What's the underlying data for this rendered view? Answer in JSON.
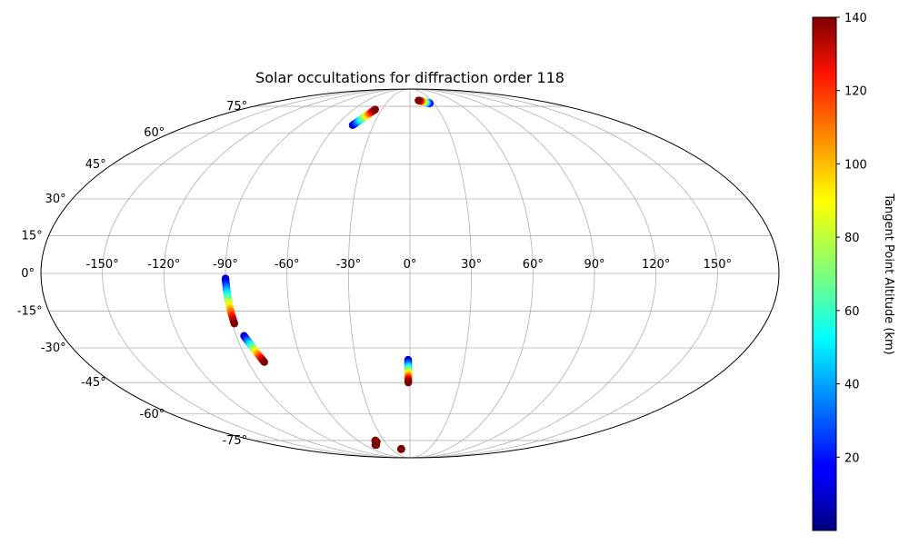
{
  "chart_data": {
    "type": "scatter",
    "projection": "mollweide",
    "title": "Solar occultations for diffraction order 118",
    "lon_ticks": [
      -150,
      -120,
      -90,
      -60,
      -30,
      0,
      30,
      60,
      90,
      120,
      150
    ],
    "lon_tick_labels": [
      "-150°",
      "-120°",
      "-90°",
      "-60°",
      "-30°",
      "0°",
      "30°",
      "60°",
      "90°",
      "120°",
      "150°"
    ],
    "lat_ticks": [
      75,
      60,
      45,
      30,
      15,
      0,
      -15,
      -30,
      -45,
      -60,
      -75
    ],
    "lat_tick_labels": [
      "75°",
      "60°",
      "45°",
      "30°",
      "15°",
      "0°",
      "-15°",
      "-30°",
      "-45°",
      "-60°",
      "-75°"
    ],
    "grid": true,
    "colorbar": {
      "label": "Tangent Point Altitude (km)",
      "range": [
        0,
        140
      ],
      "ticks": [
        20,
        40,
        60,
        80,
        100,
        120,
        140
      ],
      "tick_labels": [
        "20",
        "40",
        "60",
        "80",
        "100",
        "120",
        "140"
      ],
      "colormap": "jet"
    },
    "tracks": [
      {
        "lon_start": -47,
        "lat_start": 64,
        "alt_start": 5,
        "lon_end": -37,
        "lat_end": 73,
        "alt_end": 140
      },
      {
        "lon_start": 25,
        "lat_start": 77,
        "alt_start": 5,
        "lon_end": 12,
        "lat_end": 79,
        "alt_end": 140
      },
      {
        "lon_start": -90,
        "lat_start": -2,
        "alt_start": 5,
        "lon_end": -89,
        "lat_end": -20,
        "alt_end": 140
      },
      {
        "lon_start": -86,
        "lat_start": -25,
        "alt_start": 5,
        "lon_end": -81,
        "lat_end": -36,
        "alt_end": 140
      },
      {
        "lon_start": -1,
        "lat_start": -35,
        "alt_start": 5,
        "lon_end": -1,
        "lat_end": -45,
        "alt_end": 140
      },
      {
        "lon_start": -40,
        "lat_start": -75,
        "alt_start": 140,
        "lon_end": -40,
        "lat_end": -76,
        "alt_end": 140
      },
      {
        "lon_start": -46,
        "lat_start": -78,
        "alt_start": 140,
        "lon_end": -45,
        "lat_end": -78,
        "alt_end": 140
      },
      {
        "lon_start": -14,
        "lat_start": -81,
        "alt_start": 140,
        "lon_end": -14,
        "lat_end": -81,
        "alt_end": 140
      }
    ]
  }
}
